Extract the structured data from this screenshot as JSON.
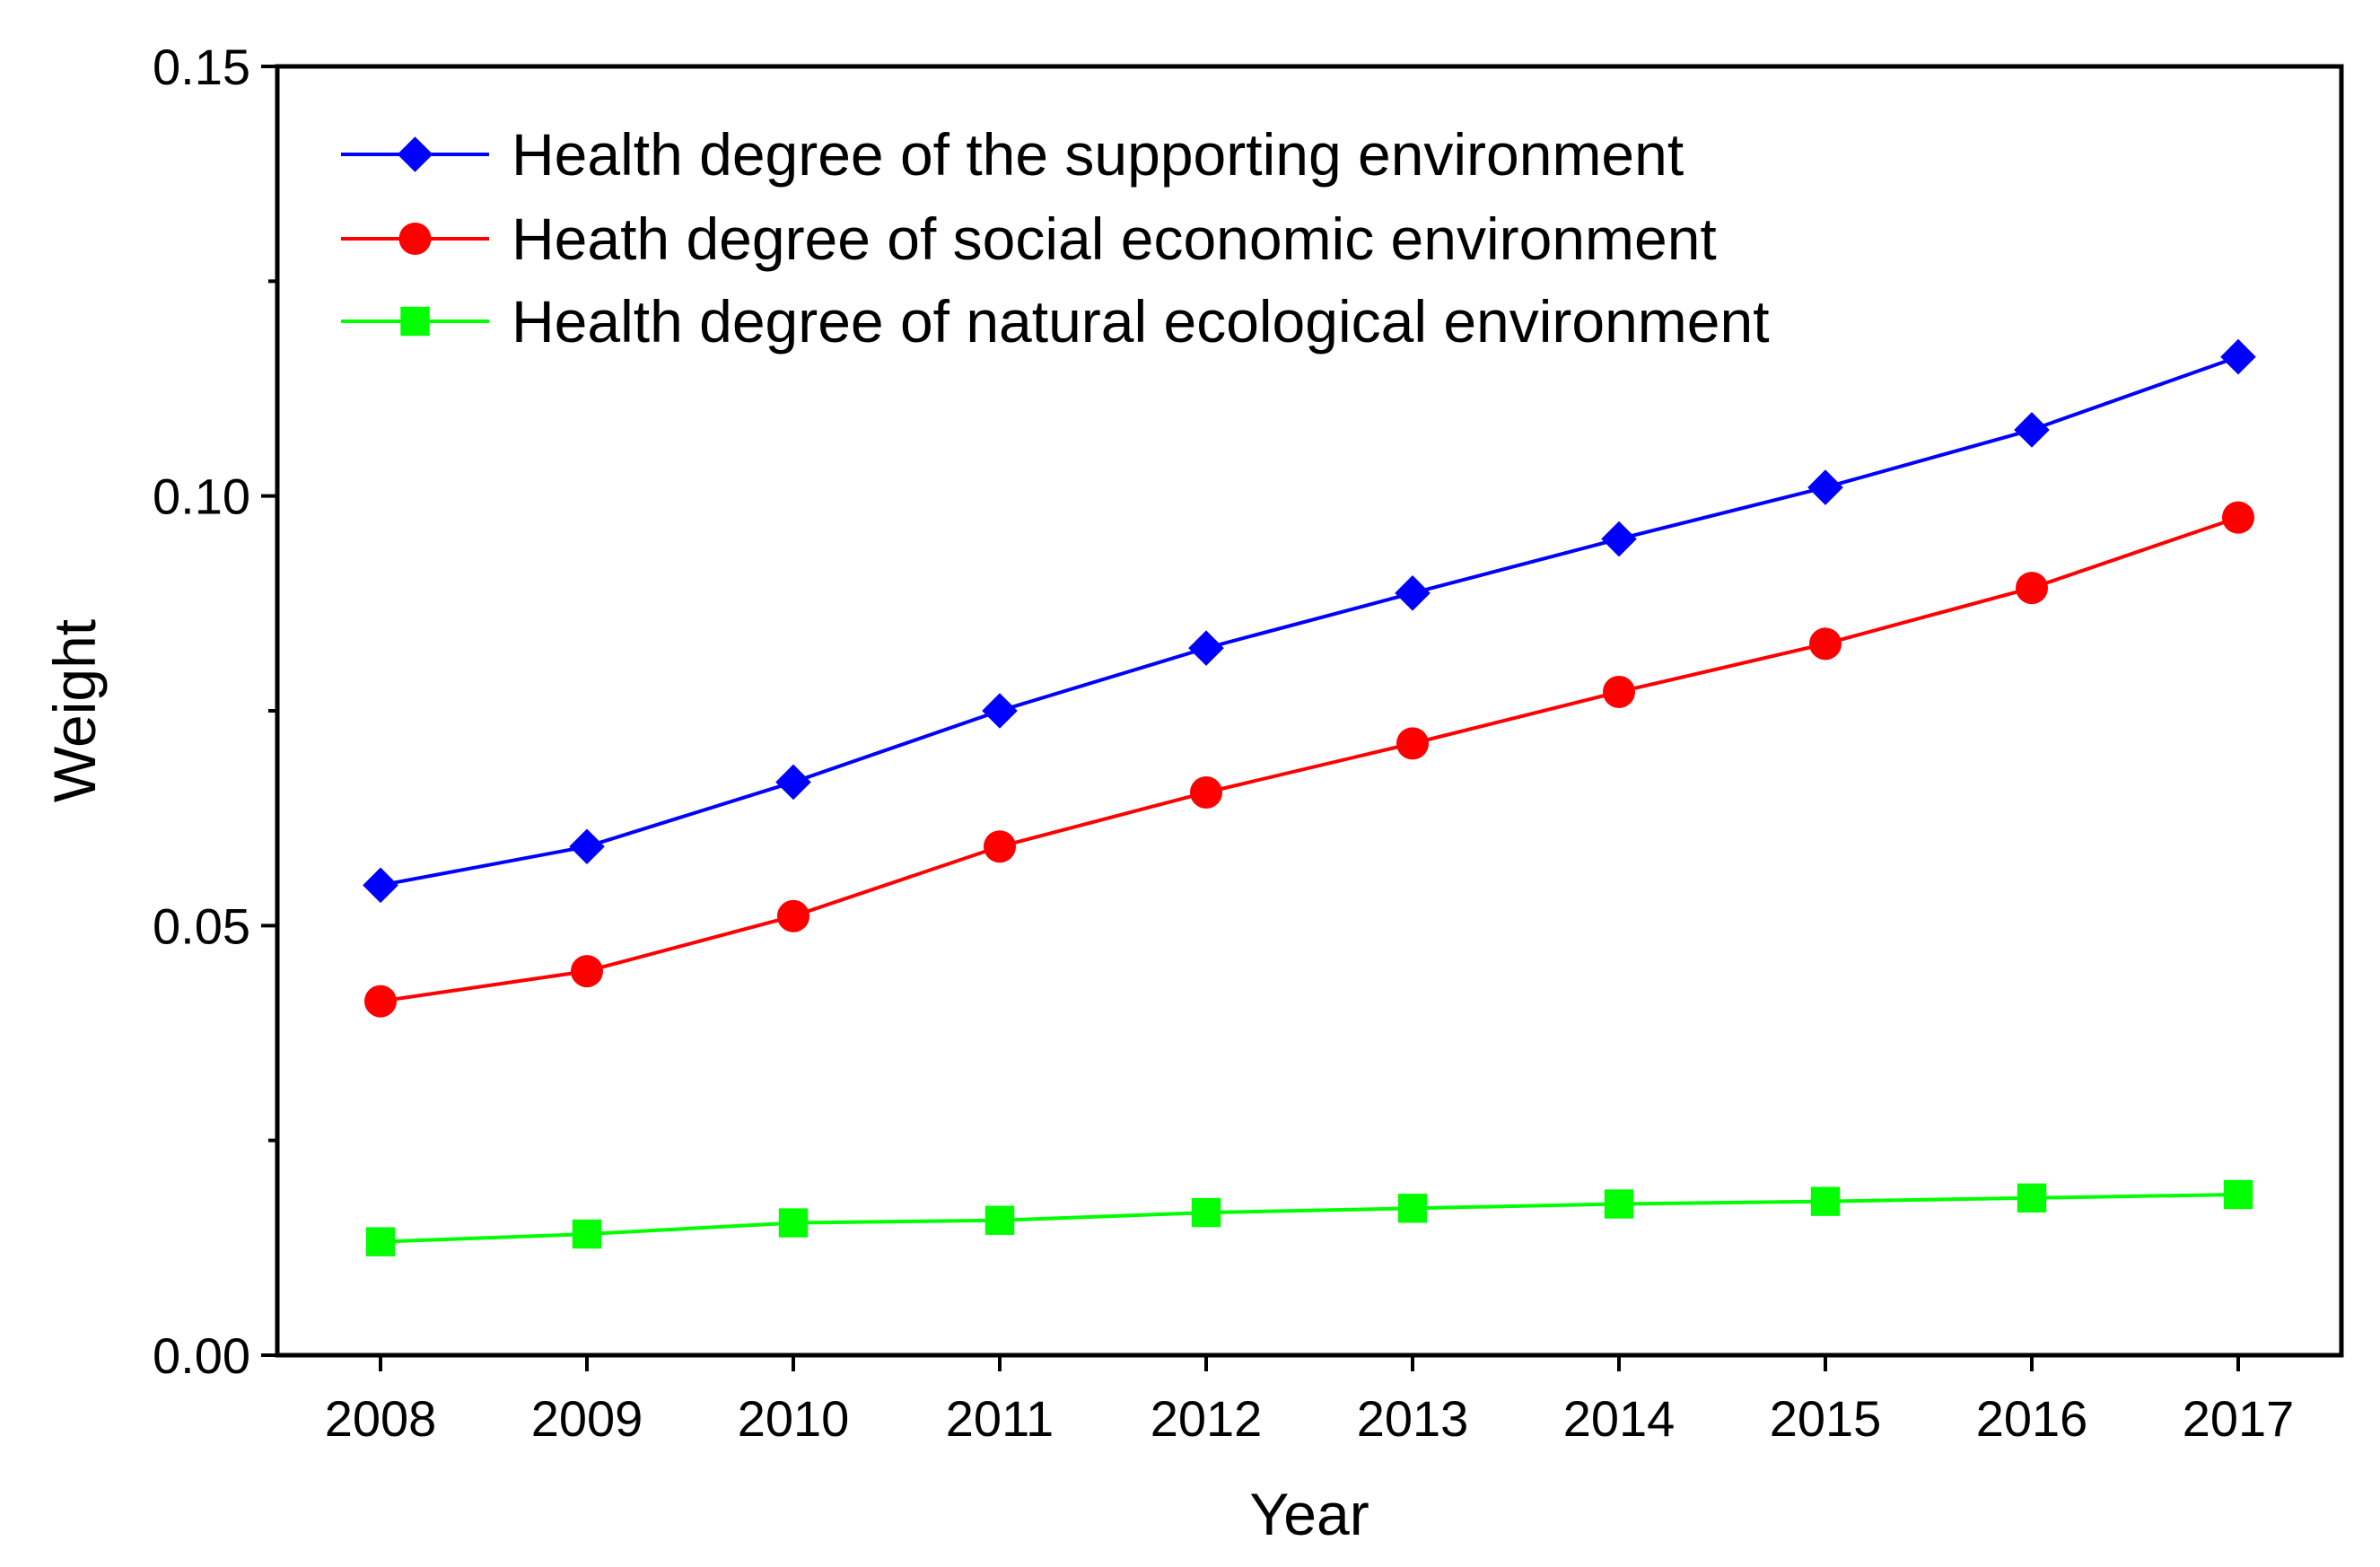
{
  "chart_data": {
    "type": "line",
    "title": "",
    "xlabel": "Year",
    "ylabel": "Weight",
    "categories": [
      "2008",
      "2009",
      "2010",
      "2011",
      "2012",
      "2013",
      "2014",
      "2015",
      "2016",
      "2017"
    ],
    "ylim": [
      0,
      0.15
    ],
    "yticks": [
      "0.00",
      "0.05",
      "0.10",
      "0.15"
    ],
    "grid": false,
    "legend_position": "top-left",
    "series": [
      {
        "name": "Health degree of the supporting environment",
        "color": "#0000ff",
        "marker": "diamond",
        "values": [
          0.0547,
          0.0592,
          0.0667,
          0.075,
          0.0823,
          0.0887,
          0.095,
          0.101,
          0.1077,
          0.1162
        ]
      },
      {
        "name": "Heath degree of social economic environment",
        "color": "#ff0000",
        "marker": "circle",
        "values": [
          0.0412,
          0.0447,
          0.0511,
          0.0592,
          0.0655,
          0.0712,
          0.0772,
          0.0828,
          0.0893,
          0.0975
        ]
      },
      {
        "name": "Health degree of natural ecological environment",
        "color": "#00ff00",
        "marker": "square",
        "values": [
          0.0132,
          0.0141,
          0.0154,
          0.0157,
          0.0166,
          0.0171,
          0.0176,
          0.0179,
          0.0183,
          0.0187
        ]
      }
    ]
  }
}
